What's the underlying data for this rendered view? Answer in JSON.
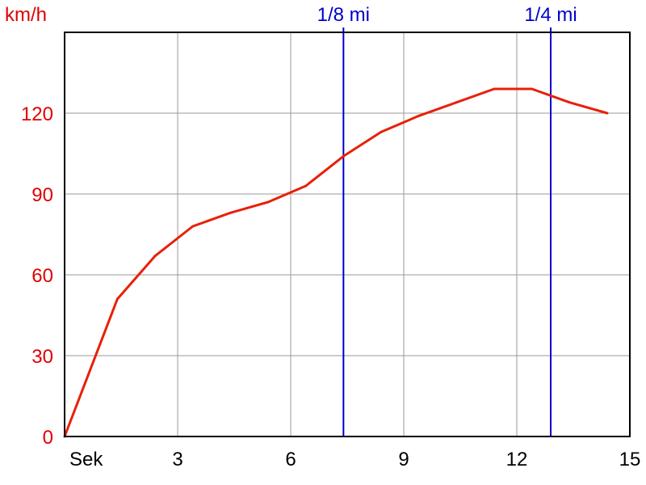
{
  "chart_data": {
    "type": "line",
    "ylabel": "km/h",
    "xlabel": "Sek",
    "xlim": [
      0,
      15
    ],
    "ylim": [
      0,
      150
    ],
    "x_ticks": [
      3,
      6,
      9,
      12,
      15
    ],
    "y_ticks": [
      0,
      30,
      60,
      90,
      120
    ],
    "grid": true,
    "markers": [
      {
        "label": "1/8 mi",
        "x": 7.4
      },
      {
        "label": "1/4 mi",
        "x": 12.9
      }
    ],
    "series": [
      {
        "color": "#e8200a",
        "x": [
          0.0,
          1.4,
          2.4,
          3.4,
          4.4,
          5.4,
          6.4,
          7.4,
          8.4,
          9.4,
          10.4,
          11.4,
          12.4,
          13.4,
          14.4
        ],
        "y": [
          0,
          51,
          67,
          78,
          83,
          87,
          93,
          104,
          113,
          119,
          124,
          129,
          129,
          124,
          120
        ]
      }
    ],
    "colors": {
      "series": "#e8200a",
      "markers": "#0000cc",
      "axis_text": "#e00000",
      "grid": "#999999"
    }
  }
}
